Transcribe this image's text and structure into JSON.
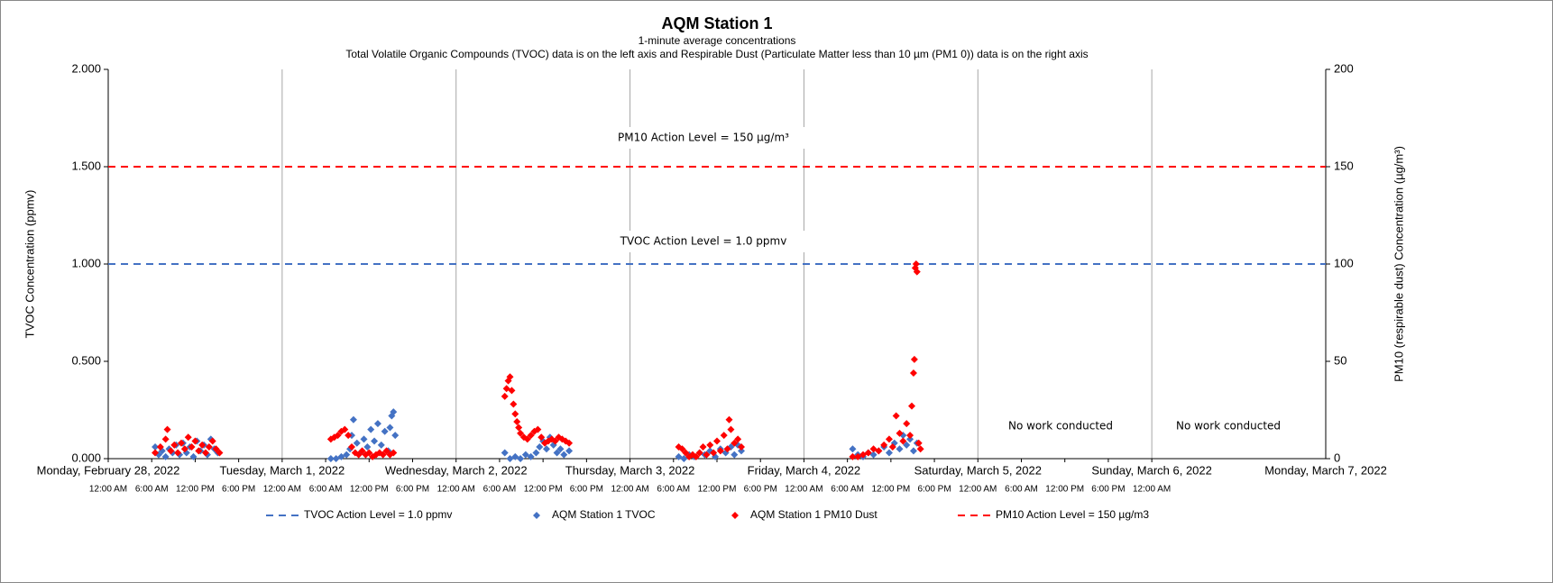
{
  "chart_data": {
    "type": "scatter",
    "title": "AQM Station 1",
    "subtitle": "1-minute average concentrations",
    "subtitle2": "Total Volatile Organic Compounds (TVOC) data is on the left axis and Respirable Dust (Particulate Matter less than 10 µm (PM1 0)) data is on the right axis",
    "ylabel": "TVOC Concentration (ppmv)",
    "y2label": "PM10 (respirable dust) Concentration (µg/m³)",
    "xlim": [
      0,
      7
    ],
    "xticks": [
      {
        "value": 0,
        "label": "Monday, February 28, 2022"
      },
      {
        "value": 1,
        "label": "Tuesday, March 1, 2022"
      },
      {
        "value": 2,
        "label": "Wednesday, March 2, 2022"
      },
      {
        "value": 3,
        "label": "Thursday, March 3, 2022"
      },
      {
        "value": 4,
        "label": "Friday, March 4, 2022"
      },
      {
        "value": 5,
        "label": "Saturday, March 5, 2022"
      },
      {
        "value": 6,
        "label": "Sunday, March 6, 2022"
      },
      {
        "value": 7,
        "label": "Monday, March 7, 2022"
      }
    ],
    "time_ticks": [
      {
        "value": 0,
        "label": "12:00 AM"
      },
      {
        "value": 0.25,
        "label": "6:00 AM"
      },
      {
        "value": 0.5,
        "label": "12:00 PM"
      },
      {
        "value": 0.75,
        "label": "6:00 PM"
      },
      {
        "value": 1,
        "label": "12:00 AM"
      },
      {
        "value": 1.25,
        "label": "6:00 AM"
      },
      {
        "value": 1.5,
        "label": "12:00 PM"
      },
      {
        "value": 1.75,
        "label": "6:00 PM"
      },
      {
        "value": 2,
        "label": "12:00 AM"
      },
      {
        "value": 2.25,
        "label": "6:00 AM"
      },
      {
        "value": 2.5,
        "label": "12:00 PM"
      },
      {
        "value": 2.75,
        "label": "6:00 PM"
      },
      {
        "value": 3,
        "label": "12:00 AM"
      },
      {
        "value": 3.25,
        "label": "6:00 AM"
      },
      {
        "value": 3.5,
        "label": "12:00 PM"
      },
      {
        "value": 3.75,
        "label": "6:00 PM"
      },
      {
        "value": 4,
        "label": "12:00 AM"
      },
      {
        "value": 4.25,
        "label": "6:00 AM"
      },
      {
        "value": 4.5,
        "label": "12:00 PM"
      },
      {
        "value": 4.75,
        "label": "6:00 PM"
      },
      {
        "value": 5,
        "label": "12:00 AM"
      },
      {
        "value": 5.25,
        "label": "6:00 AM"
      },
      {
        "value": 5.5,
        "label": "12:00 PM"
      },
      {
        "value": 5.75,
        "label": "6:00 PM"
      },
      {
        "value": 6,
        "label": "12:00 AM"
      }
    ],
    "ylim": [
      0,
      2
    ],
    "yticks": [
      {
        "value": 0,
        "label": "0.000"
      },
      {
        "value": 0.5,
        "label": "0.500"
      },
      {
        "value": 1,
        "label": "1.000"
      },
      {
        "value": 1.5,
        "label": "1.500"
      },
      {
        "value": 2,
        "label": "2.000"
      }
    ],
    "y2lim": [
      0,
      200
    ],
    "y2ticks": [
      0,
      50,
      100,
      150,
      200
    ],
    "grid": "x",
    "legend": "bottom",
    "series": [
      {
        "name": "TVOC Action Level = 1.0 ppmv",
        "type": "line",
        "dash": true,
        "color": "#4472c4",
        "x": [
          0,
          7
        ],
        "values": [
          1,
          1
        ]
      },
      {
        "name": "AQM Station 1 TVOC",
        "type": "scatter",
        "color": "#4472c4",
        "x": [
          0.27,
          0.29,
          0.31,
          0.33,
          0.35,
          0.37,
          0.39,
          0.41,
          0.43,
          0.45,
          0.47,
          0.49,
          0.51,
          0.53,
          0.55,
          0.57,
          0.59,
          0.61,
          0.63,
          1.28,
          1.31,
          1.34,
          1.37,
          1.39,
          1.4,
          1.41,
          1.43,
          1.45,
          1.47,
          1.49,
          1.51,
          1.53,
          1.55,
          1.57,
          1.59,
          1.61,
          1.62,
          1.63,
          1.64,
          1.65,
          2.28,
          2.31,
          2.34,
          2.37,
          2.4,
          2.43,
          2.46,
          2.48,
          2.5,
          2.52,
          2.54,
          2.56,
          2.58,
          2.6,
          2.62,
          2.65,
          3.28,
          3.31,
          3.34,
          3.37,
          3.4,
          3.43,
          3.46,
          3.49,
          3.52,
          3.55,
          3.58,
          3.6,
          3.62,
          3.64,
          4.28,
          4.31,
          4.34,
          4.37,
          4.4,
          4.43,
          4.46,
          4.49,
          4.52,
          4.55,
          4.57,
          4.59,
          4.61,
          4.63,
          4.65
        ],
        "values": [
          0.06,
          0.02,
          0.04,
          0.01,
          0.05,
          0.03,
          0.07,
          0.02,
          0.08,
          0.03,
          0.06,
          0.01,
          0.09,
          0.04,
          0.07,
          0.02,
          0.1,
          0.05,
          0.03,
          0.0,
          0.0,
          0.01,
          0.02,
          0.05,
          0.12,
          0.2,
          0.08,
          0.03,
          0.1,
          0.06,
          0.15,
          0.09,
          0.18,
          0.07,
          0.14,
          0.04,
          0.16,
          0.22,
          0.24,
          0.12,
          0.03,
          0.0,
          0.01,
          0.0,
          0.02,
          0.01,
          0.03,
          0.06,
          0.09,
          0.05,
          0.11,
          0.07,
          0.03,
          0.05,
          0.02,
          0.04,
          0.01,
          0.0,
          0.02,
          0.01,
          0.03,
          0.02,
          0.04,
          0.01,
          0.05,
          0.03,
          0.06,
          0.02,
          0.07,
          0.04,
          0.05,
          0.02,
          0.01,
          0.03,
          0.02,
          0.04,
          0.06,
          0.03,
          0.08,
          0.05,
          0.12,
          0.07,
          0.1,
          0.04,
          0.08
        ]
      },
      {
        "name": "AQM Station 1 PM10 Dust",
        "type": "scatter",
        "axis": "y2",
        "color": "#ff0000",
        "x": [
          0.27,
          0.3,
          0.33,
          0.34,
          0.36,
          0.38,
          0.4,
          0.42,
          0.44,
          0.46,
          0.48,
          0.5,
          0.52,
          0.54,
          0.56,
          0.58,
          0.6,
          0.62,
          0.64,
          1.28,
          1.3,
          1.32,
          1.34,
          1.36,
          1.38,
          1.4,
          1.42,
          1.44,
          1.46,
          1.48,
          1.5,
          1.52,
          1.54,
          1.56,
          1.58,
          1.6,
          1.62,
          1.64,
          2.28,
          2.29,
          2.3,
          2.31,
          2.32,
          2.33,
          2.34,
          2.35,
          2.36,
          2.37,
          2.39,
          2.41,
          2.43,
          2.45,
          2.47,
          2.49,
          2.51,
          2.53,
          2.55,
          2.57,
          2.59,
          2.61,
          2.63,
          2.65,
          3.28,
          3.3,
          3.32,
          3.34,
          3.36,
          3.38,
          3.4,
          3.42,
          3.44,
          3.46,
          3.48,
          3.5,
          3.52,
          3.54,
          3.56,
          3.57,
          3.58,
          3.6,
          3.62,
          3.64,
          4.28,
          4.31,
          4.34,
          4.37,
          4.4,
          4.43,
          4.46,
          4.49,
          4.51,
          4.53,
          4.55,
          4.57,
          4.59,
          4.61,
          4.62,
          4.63,
          4.635,
          4.64,
          4.645,
          4.65,
          4.66,
          4.67
        ],
        "values": [
          3,
          6,
          10,
          15,
          4,
          7,
          3,
          8,
          5,
          11,
          6,
          9,
          4,
          7,
          3,
          6,
          9,
          5,
          3,
          10,
          11,
          12,
          14,
          15,
          12,
          6,
          3,
          2,
          4,
          2,
          3,
          1,
          2,
          3,
          2,
          4,
          2,
          3,
          32,
          36,
          40,
          42,
          35,
          28,
          23,
          19,
          16,
          13,
          11,
          10,
          12,
          14,
          15,
          11,
          8,
          9,
          10,
          9,
          11,
          10,
          9,
          8,
          6,
          5,
          3,
          1,
          2,
          1,
          3,
          6,
          2,
          7,
          3,
          9,
          4,
          12,
          5,
          20,
          15,
          8,
          10,
          6,
          1,
          1,
          2,
          3,
          5,
          4,
          7,
          10,
          6,
          22,
          13,
          9,
          18,
          12,
          27,
          44,
          51,
          98,
          100,
          96,
          8,
          5
        ]
      },
      {
        "name": "PM10 Action Level = 150 µg/m3",
        "type": "line",
        "dash": true,
        "axis": "y2",
        "color": "#ff0000",
        "x": [
          0,
          7
        ],
        "values": [
          150,
          150
        ]
      }
    ],
    "annotations": [
      "PM10 Action Level = 150 µg/m³",
      "TVOC Action Level = 1.0 ppmv",
      "No work conducted",
      "No work conducted"
    ]
  }
}
